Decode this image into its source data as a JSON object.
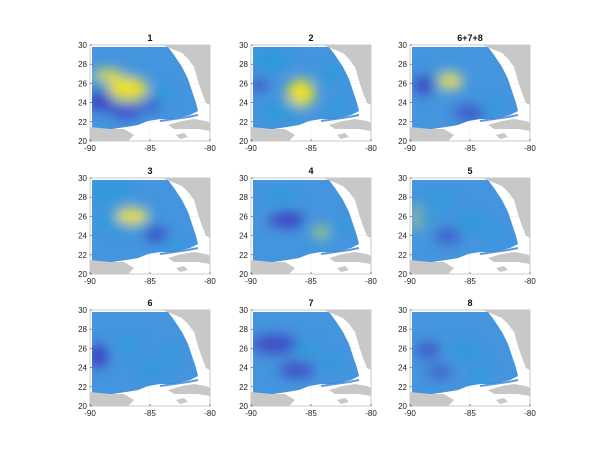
{
  "figure": {
    "panels": [
      {
        "title": "1"
      },
      {
        "title": "2"
      },
      {
        "title": "6+7+8"
      },
      {
        "title": "3"
      },
      {
        "title": "4"
      },
      {
        "title": "5"
      },
      {
        "title": "6"
      },
      {
        "title": "7"
      },
      {
        "title": "8"
      }
    ],
    "x_ticks": [
      "-90",
      "-85",
      "-80"
    ],
    "y_ticks": [
      "30",
      "28",
      "26",
      "24",
      "22",
      "20"
    ],
    "colors": {
      "background": "#ffffff",
      "land": "#c8c8c8",
      "field_low": "#3d3fbf",
      "field_mid": "#2a9bd8",
      "field_high": "#f4e41c",
      "coast_sea": "#2f7fd6"
    }
  }
}
